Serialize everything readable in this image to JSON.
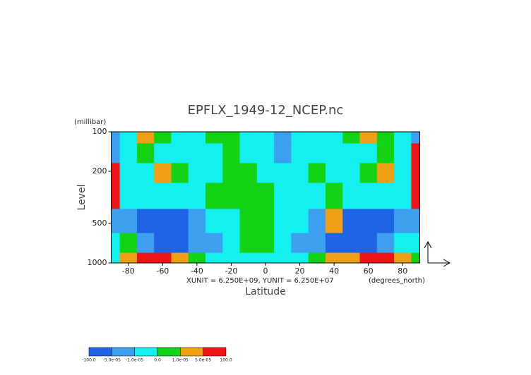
{
  "chart_data": {
    "type": "contour",
    "title": "EPFLX_1949-12_NCEP.nc",
    "y_unit_label": "(millibar)",
    "y_label": "Level",
    "x_label": "Latitude",
    "x_note": "(degrees_north)",
    "vector_note": "XUNIT = 6.250E+09, YUNIT = 6.250E+07",
    "xlim": [
      -90,
      90
    ],
    "xticks": [
      -80,
      -60,
      -40,
      -20,
      0,
      20,
      40,
      60,
      80
    ],
    "ylim": [
      1000,
      100
    ],
    "yticks": [
      100,
      200,
      500,
      1000
    ],
    "ylog": true,
    "x": [
      -90,
      -80,
      -70,
      -60,
      -50,
      -40,
      -30,
      -20,
      -10,
      0,
      10,
      20,
      30,
      40,
      50,
      60,
      70,
      80,
      90
    ],
    "y": [
      100,
      150,
      200,
      300,
      500,
      700,
      1000
    ],
    "values": [
      [
        -3e-05,
        -5e-06,
        3e-05,
        5e-06,
        -5e-06,
        -5e-06,
        5e-06,
        5e-06,
        -5e-06,
        -5e-06,
        -3e-05,
        -5e-06,
        -5e-06,
        -5e-06,
        5e-06,
        3e-05,
        5e-06,
        -5e-06,
        -3e-05
      ],
      [
        -3e-05,
        -5e-06,
        5e-06,
        -5e-06,
        -5e-06,
        -5e-06,
        -5e-06,
        5e-06,
        -5e-06,
        -5e-06,
        -3e-05,
        -5e-06,
        -5e-06,
        -5e-06,
        -5e-06,
        -5e-06,
        5e-06,
        -5e-06,
        8e-05
      ],
      [
        8e-05,
        -5e-06,
        -5e-06,
        3e-05,
        5e-06,
        -5e-06,
        -5e-06,
        5e-06,
        5e-06,
        -5e-06,
        -5e-06,
        -5e-06,
        5e-06,
        -5e-06,
        -5e-06,
        5e-06,
        3e-05,
        -5e-06,
        8e-05
      ],
      [
        8e-05,
        -5e-06,
        -5e-06,
        -5e-06,
        -5e-06,
        -5e-06,
        5e-06,
        5e-06,
        5e-06,
        5e-06,
        -5e-06,
        -5e-06,
        -5e-06,
        5e-06,
        -5e-06,
        -5e-06,
        -5e-06,
        -5e-06,
        8e-05
      ],
      [
        -3e-05,
        -3e-05,
        -8e-05,
        -8e-05,
        -8e-05,
        -3e-05,
        -5e-06,
        -5e-06,
        5e-06,
        5e-06,
        -5e-06,
        -5e-06,
        -3e-05,
        3e-05,
        -8e-05,
        -8e-05,
        -8e-05,
        -3e-05,
        -3e-05
      ],
      [
        -5e-06,
        5e-06,
        -3e-05,
        -8e-05,
        -8e-05,
        -3e-05,
        -3e-05,
        -5e-06,
        5e-06,
        5e-06,
        -5e-06,
        -3e-05,
        -3e-05,
        -8e-05,
        -8e-05,
        -8e-05,
        -3e-05,
        -5e-06,
        -5e-06
      ],
      [
        -5e-06,
        3e-05,
        8e-05,
        8e-05,
        3e-05,
        5e-06,
        -5e-06,
        -5e-06,
        -5e-06,
        -5e-06,
        -5e-06,
        -5e-06,
        5e-06,
        3e-05,
        3e-05,
        8e-05,
        8e-05,
        3e-05,
        5e-06
      ]
    ],
    "colorbar": {
      "ticks": [
        {
          "value": -100,
          "label": "-100.0"
        },
        {
          "value": -5e-05,
          "label": "-5.0e-05"
        },
        {
          "value": -1e-05,
          "label": "-1.0e-05"
        },
        {
          "value": 0,
          "label": "0.0"
        },
        {
          "value": 1e-05,
          "label": "1.0e-05"
        },
        {
          "value": 5e-05,
          "label": "5.0e-05"
        },
        {
          "value": 100,
          "label": "100.0"
        }
      ],
      "colors": [
        "#1e64e6",
        "#3c9ff0",
        "#14f0f0",
        "#14d214",
        "#f0a014",
        "#f01414"
      ]
    }
  }
}
